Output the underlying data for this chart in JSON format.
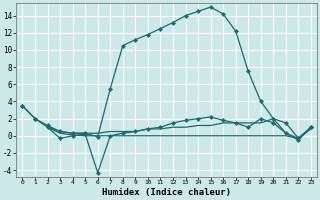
{
  "xlabel": "Humidex (Indice chaleur)",
  "bg_color": "#cce8e8",
  "grid_color": "#ffffff",
  "line_color": "#1a6b6b",
  "xlim": [
    -0.5,
    23.5
  ],
  "ylim": [
    -4.8,
    15.5
  ],
  "xticks": [
    0,
    1,
    2,
    3,
    4,
    5,
    6,
    7,
    8,
    9,
    10,
    11,
    12,
    13,
    14,
    15,
    16,
    17,
    18,
    19,
    20,
    21,
    22,
    23
  ],
  "yticks": [
    -4,
    -2,
    0,
    2,
    4,
    6,
    8,
    10,
    12,
    14
  ],
  "line1_x": [
    0,
    1,
    2,
    3,
    4,
    5,
    6,
    7,
    8,
    9,
    10,
    11,
    12,
    13,
    14,
    15,
    16,
    17,
    18,
    19,
    20,
    21,
    22,
    23
  ],
  "line1_y": [
    3.5,
    2.0,
    1.2,
    0.5,
    0.3,
    0.3,
    -0.1,
    5.5,
    10.5,
    11.2,
    11.8,
    12.5,
    13.2,
    14.0,
    14.5,
    15.0,
    14.2,
    12.2,
    7.5,
    4.0,
    2.0,
    1.5,
    -0.3,
    1.0
  ],
  "line2_x": [
    0,
    1,
    2,
    3,
    4,
    5,
    6,
    7,
    8,
    9,
    10,
    11,
    12,
    13,
    14,
    15,
    16,
    17,
    18,
    19,
    20,
    21,
    22,
    23
  ],
  "line2_y": [
    3.5,
    2.0,
    1.0,
    -0.3,
    0.0,
    0.2,
    -4.3,
    0.0,
    0.3,
    0.5,
    0.8,
    1.0,
    1.5,
    1.8,
    2.0,
    2.2,
    1.8,
    1.5,
    1.0,
    2.0,
    1.5,
    0.3,
    -0.5,
    1.0
  ],
  "line3_x": [
    2,
    3,
    4,
    5,
    6,
    7,
    8,
    9,
    10,
    11,
    12,
    13,
    14,
    15,
    16,
    17,
    18,
    19,
    20,
    21,
    22,
    23
  ],
  "line3_y": [
    1.0,
    0.5,
    0.3,
    0.3,
    0.3,
    0.5,
    0.5,
    0.5,
    0.8,
    0.8,
    1.0,
    1.0,
    1.2,
    1.2,
    1.5,
    1.5,
    1.5,
    1.5,
    2.0,
    0.3,
    -0.3,
    1.0
  ],
  "line4_x": [
    2,
    3,
    4,
    5,
    6,
    7,
    8,
    9,
    10,
    11,
    12,
    13,
    14,
    15,
    16,
    17,
    18,
    19,
    20,
    21,
    22,
    23
  ],
  "line4_y": [
    1.0,
    0.3,
    0.1,
    0.0,
    0.0,
    0.0,
    0.0,
    0.0,
    0.0,
    0.0,
    0.0,
    0.0,
    0.0,
    0.0,
    0.0,
    0.0,
    0.0,
    0.0,
    0.0,
    0.0,
    -0.3,
    0.8
  ]
}
